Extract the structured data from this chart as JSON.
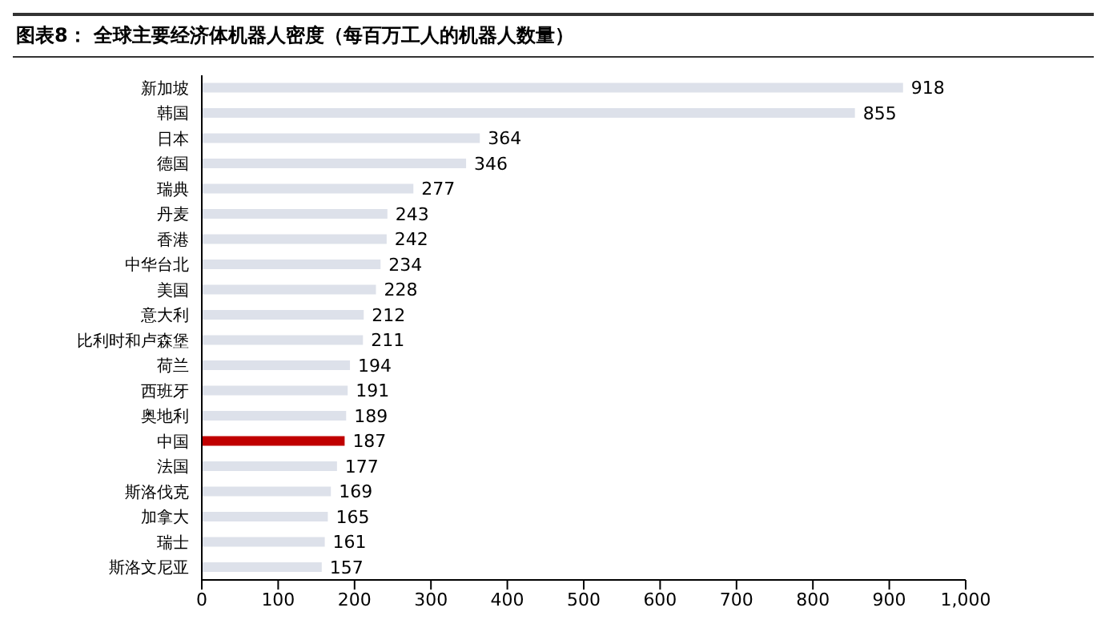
{
  "chart_data": {
    "type": "bar",
    "orientation": "horizontal",
    "title": "图表8：  全球主要经济体机器人密度（每百万工人的机器人数量）",
    "categories": [
      "新加坡",
      "韩国",
      "日本",
      "德国",
      "瑞典",
      "丹麦",
      "香港",
      "中华台北",
      "美国",
      "意大利",
      "比利时和卢森堡",
      "荷兰",
      "西班牙",
      "奥地利",
      "中国",
      "法国",
      "斯洛伐克",
      "加拿大",
      "瑞士",
      "斯洛文尼亚"
    ],
    "values": [
      918,
      855,
      364,
      346,
      277,
      243,
      242,
      234,
      228,
      212,
      211,
      194,
      191,
      189,
      187,
      177,
      169,
      165,
      161,
      157
    ],
    "colors": [
      "#dde1ea",
      "#dde1ea",
      "#dde1ea",
      "#dde1ea",
      "#dde1ea",
      "#dde1ea",
      "#dde1ea",
      "#dde1ea",
      "#dde1ea",
      "#dde1ea",
      "#dde1ea",
      "#dde1ea",
      "#dde1ea",
      "#dde1ea",
      "#c00000",
      "#dde1ea",
      "#dde1ea",
      "#dde1ea",
      "#dde1ea",
      "#dde1ea"
    ],
    "xlim": [
      0,
      1000
    ],
    "xticks": [
      0,
      100,
      200,
      300,
      400,
      500,
      600,
      700,
      800,
      900,
      {
        "value": 1000,
        "label": "1,000"
      }
    ],
    "data_labels": true,
    "grid": false,
    "legend": false
  }
}
